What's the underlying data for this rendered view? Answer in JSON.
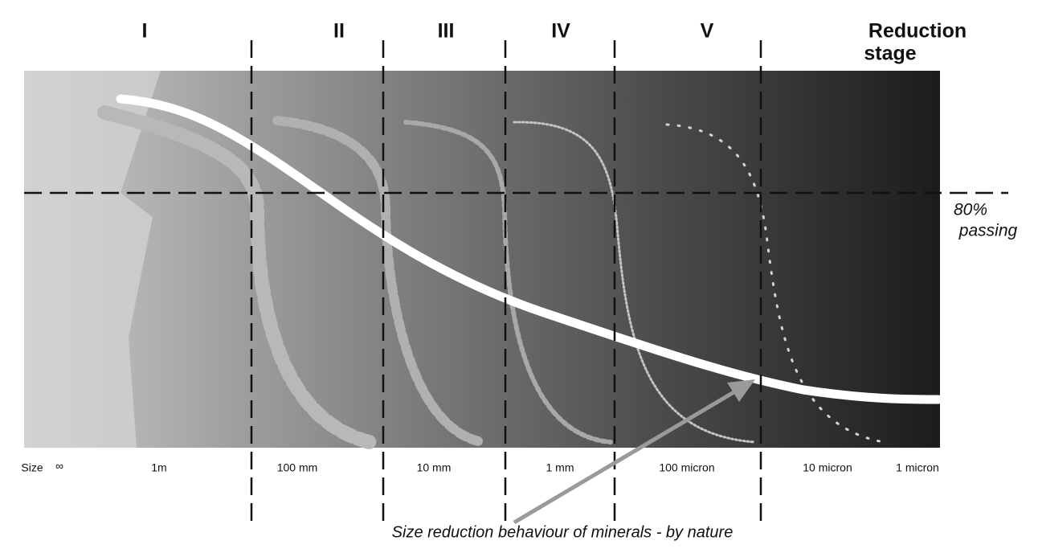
{
  "stages": [
    "I",
    "II",
    "III",
    "IV",
    "V"
  ],
  "reduction_stage": {
    "line1": "Reduction",
    "line2": "stage"
  },
  "passing": {
    "percent": "80%",
    "label": "passing"
  },
  "size_axis": {
    "label": "Size",
    "sizes": [
      "∞",
      "1m",
      "100 mm",
      "10 mm",
      "1 mm",
      "100 micron",
      "10 micron",
      "1 micron"
    ]
  },
  "caption": "Size reduction behaviour of minerals - by nature"
}
